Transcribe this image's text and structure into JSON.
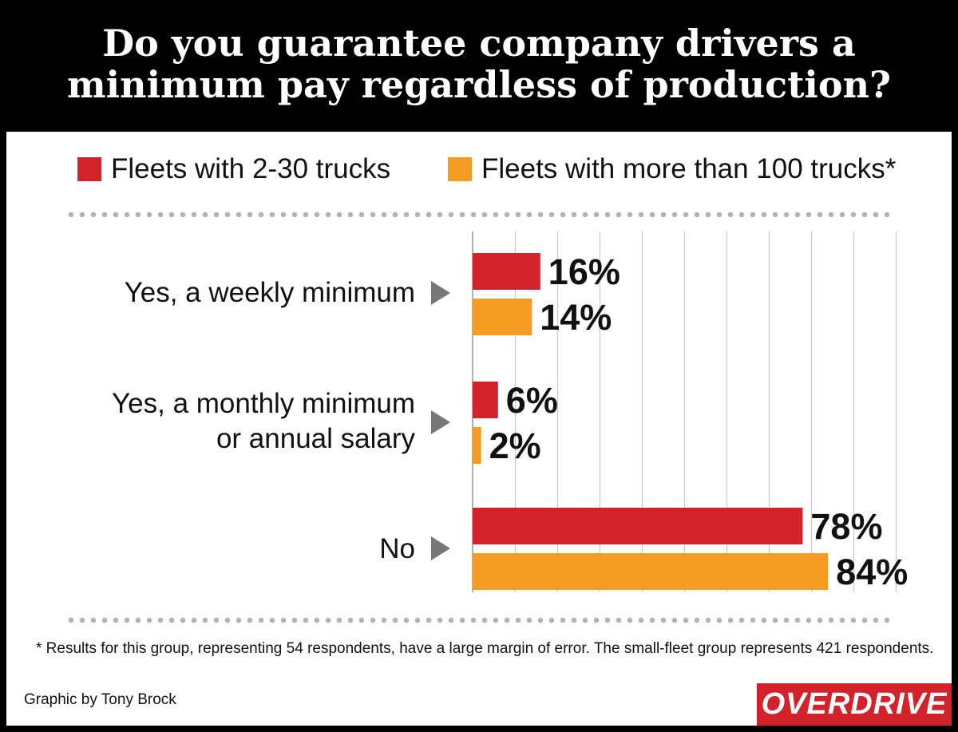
{
  "title_lines": [
    "Do you guarantee company drivers a",
    "minimum pay regardless of production?"
  ],
  "colors": {
    "series1": "#d2232a",
    "series2": "#f39c1f",
    "arrow": "#777777",
    "grid": "#c8c8c8",
    "dots": "#b3b3b3"
  },
  "legend": [
    "Fleets with 2-30 trucks",
    "Fleets with more than 100 trucks*"
  ],
  "chart_data": {
    "type": "bar",
    "orientation": "horizontal",
    "categories": [
      "Yes, a weekly minimum",
      "Yes, a monthly minimum or annual salary",
      "No"
    ],
    "category_lines": [
      [
        "Yes, a weekly minimum"
      ],
      [
        "Yes, a monthly minimum",
        "or annual salary"
      ],
      [
        "No"
      ]
    ],
    "series": [
      {
        "name": "Fleets with 2-30 trucks",
        "values": [
          16,
          6,
          78
        ],
        "labels": [
          "16%",
          "6%",
          "78%"
        ]
      },
      {
        "name": "Fleets with more than 100 trucks*",
        "values": [
          14,
          2,
          84
        ],
        "labels": [
          "14%",
          "2%",
          "84%"
        ]
      }
    ],
    "xlim": [
      0,
      100
    ],
    "grid": true,
    "legend_position": "top"
  },
  "footnote": "* Results for this group, representing 54 respondents, have a large margin of error. The small-fleet group represents 421 respondents.",
  "credit": "Graphic by Tony Brock",
  "logo_text": "OVERDRIVE"
}
